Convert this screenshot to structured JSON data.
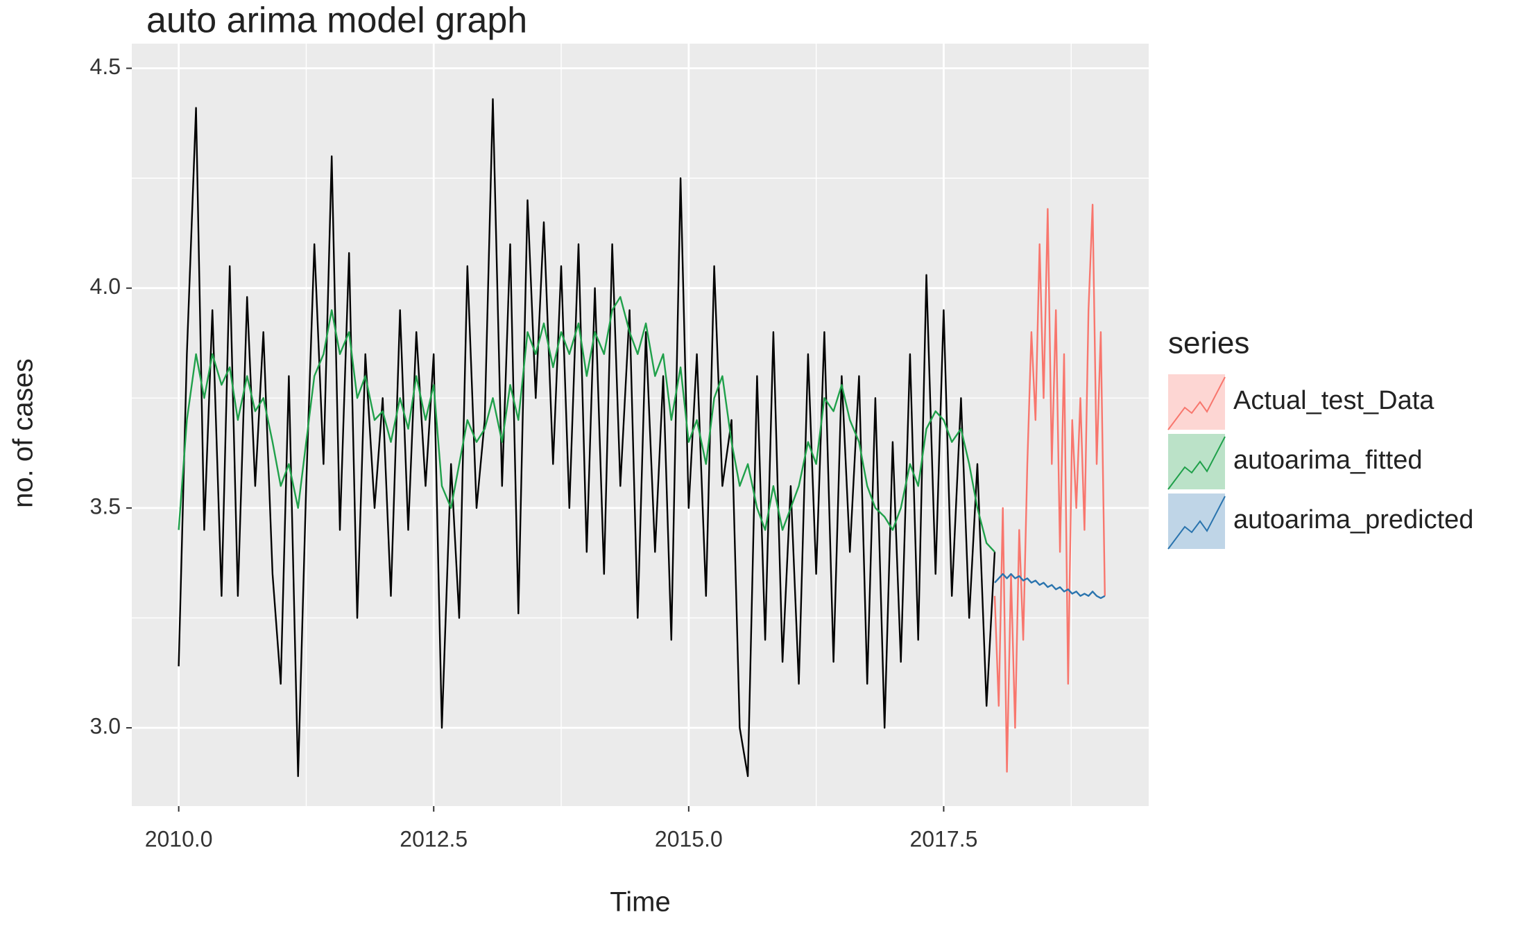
{
  "chart_data": {
    "type": "line",
    "title": "auto arima model graph",
    "x_label": "Time",
    "y_label": "no. of cases",
    "legend_title": "series",
    "xlim": [
      2009.54,
      2019.51
    ],
    "ylim": [
      2.822,
      4.556
    ],
    "xticks": [
      {
        "value": 2010,
        "label": "2010.0"
      },
      2012.5,
      {
        "value": 2015,
        "label": "2015.0"
      },
      2017.5
    ],
    "yticks": [
      {
        "value": 3,
        "label": "3.0"
      },
      3.5,
      {
        "value": 4,
        "label": "4.0"
      },
      4.5
    ],
    "grid": true,
    "legend": "right",
    "series": [
      {
        "color": "#000000",
        "x": [
          2010.0,
          2010.08,
          2010.17,
          2010.25,
          2010.33,
          2010.42,
          2010.5,
          2010.58,
          2010.67,
          2010.75,
          2010.83,
          2010.92,
          2011.0,
          2011.08,
          2011.17,
          2011.25,
          2011.33,
          2011.42,
          2011.5,
          2011.58,
          2011.67,
          2011.75,
          2011.83,
          2011.92,
          2012.0,
          2012.08,
          2012.17,
          2012.25,
          2012.33,
          2012.42,
          2012.5,
          2012.58,
          2012.67,
          2012.75,
          2012.83,
          2012.92,
          2013.0,
          2013.08,
          2013.17,
          2013.25,
          2013.33,
          2013.42,
          2013.5,
          2013.58,
          2013.67,
          2013.75,
          2013.83,
          2013.92,
          2014.0,
          2014.08,
          2014.17,
          2014.25,
          2014.33,
          2014.42,
          2014.5,
          2014.58,
          2014.67,
          2014.75,
          2014.83,
          2014.92,
          2015.0,
          2015.08,
          2015.17,
          2015.25,
          2015.33,
          2015.42,
          2015.5,
          2015.58,
          2015.67,
          2015.75,
          2015.83,
          2015.92,
          2016.0,
          2016.08,
          2016.17,
          2016.25,
          2016.33,
          2016.42,
          2016.5,
          2016.58,
          2016.67,
          2016.75,
          2016.83,
          2016.92,
          2017.0,
          2017.08,
          2017.17,
          2017.25,
          2017.33,
          2017.42,
          2017.5,
          2017.58,
          2017.67,
          2017.75,
          2017.83,
          2017.92,
          2018.0
        ],
        "values": [
          3.14,
          3.85,
          4.41,
          3.45,
          3.95,
          3.3,
          4.05,
          3.3,
          3.98,
          3.55,
          3.9,
          3.35,
          3.1,
          3.8,
          2.89,
          3.55,
          4.1,
          3.6,
          4.3,
          3.45,
          4.08,
          3.25,
          3.85,
          3.5,
          3.75,
          3.3,
          3.95,
          3.45,
          3.9,
          3.55,
          3.85,
          3.0,
          3.6,
          3.25,
          4.05,
          3.5,
          3.7,
          4.43,
          3.55,
          4.1,
          3.26,
          4.2,
          3.75,
          4.15,
          3.6,
          4.05,
          3.5,
          4.1,
          3.4,
          4.0,
          3.35,
          4.1,
          3.55,
          3.95,
          3.25,
          3.9,
          3.4,
          3.8,
          3.2,
          4.25,
          3.5,
          3.85,
          3.3,
          4.05,
          3.55,
          3.7,
          3.0,
          2.89,
          3.8,
          3.2,
          3.9,
          3.15,
          3.55,
          3.1,
          3.85,
          3.35,
          3.9,
          3.15,
          3.8,
          3.4,
          3.8,
          3.1,
          3.75,
          3.0,
          3.65,
          3.15,
          3.85,
          3.2,
          4.03,
          3.35,
          3.95,
          3.3,
          3.75,
          3.25,
          3.6,
          3.05,
          3.4
        ]
      },
      {
        "name": "Actual_test_Data",
        "color": "#F8766D",
        "x": [
          2018.0,
          2018.04,
          2018.08,
          2018.12,
          2018.16,
          2018.2,
          2018.24,
          2018.28,
          2018.32,
          2018.36,
          2018.4,
          2018.44,
          2018.48,
          2018.52,
          2018.56,
          2018.6,
          2018.64,
          2018.68,
          2018.72,
          2018.76,
          2018.8,
          2018.84,
          2018.88,
          2018.92,
          2018.96,
          2019.0,
          2019.04,
          2019.08
        ],
        "values": [
          3.3,
          3.05,
          3.5,
          2.9,
          3.35,
          3.0,
          3.45,
          3.2,
          3.6,
          3.9,
          3.7,
          4.1,
          3.75,
          4.18,
          3.6,
          3.95,
          3.4,
          3.85,
          3.1,
          3.7,
          3.5,
          3.75,
          3.45,
          3.95,
          4.19,
          3.6,
          3.9,
          3.3
        ]
      },
      {
        "name": "autoarima_fitted",
        "color": "#1FA04A",
        "x": [
          2010.0,
          2010.08,
          2010.17,
          2010.25,
          2010.33,
          2010.42,
          2010.5,
          2010.58,
          2010.67,
          2010.75,
          2010.83,
          2010.92,
          2011.0,
          2011.08,
          2011.17,
          2011.25,
          2011.33,
          2011.42,
          2011.5,
          2011.58,
          2011.67,
          2011.75,
          2011.83,
          2011.92,
          2012.0,
          2012.08,
          2012.17,
          2012.25,
          2012.33,
          2012.42,
          2012.5,
          2012.58,
          2012.67,
          2012.75,
          2012.83,
          2012.92,
          2013.0,
          2013.08,
          2013.17,
          2013.25,
          2013.33,
          2013.42,
          2013.5,
          2013.58,
          2013.67,
          2013.75,
          2013.83,
          2013.92,
          2014.0,
          2014.08,
          2014.17,
          2014.25,
          2014.33,
          2014.42,
          2014.5,
          2014.58,
          2014.67,
          2014.75,
          2014.83,
          2014.92,
          2015.0,
          2015.08,
          2015.17,
          2015.25,
          2015.33,
          2015.42,
          2015.5,
          2015.58,
          2015.67,
          2015.75,
          2015.83,
          2015.92,
          2016.0,
          2016.08,
          2016.17,
          2016.25,
          2016.33,
          2016.42,
          2016.5,
          2016.58,
          2016.67,
          2016.75,
          2016.83,
          2016.92,
          2017.0,
          2017.08,
          2017.17,
          2017.25,
          2017.33,
          2017.42,
          2017.5,
          2017.58,
          2017.67,
          2017.75,
          2017.83,
          2017.92,
          2018.0
        ],
        "values": [
          3.45,
          3.7,
          3.85,
          3.75,
          3.85,
          3.78,
          3.82,
          3.7,
          3.8,
          3.72,
          3.75,
          3.65,
          3.55,
          3.6,
          3.5,
          3.65,
          3.8,
          3.85,
          3.95,
          3.85,
          3.9,
          3.75,
          3.8,
          3.7,
          3.72,
          3.65,
          3.75,
          3.68,
          3.8,
          3.7,
          3.78,
          3.55,
          3.5,
          3.6,
          3.7,
          3.65,
          3.68,
          3.75,
          3.65,
          3.78,
          3.7,
          3.9,
          3.85,
          3.92,
          3.82,
          3.9,
          3.85,
          3.92,
          3.8,
          3.9,
          3.85,
          3.95,
          3.98,
          3.9,
          3.85,
          3.92,
          3.8,
          3.85,
          3.7,
          3.82,
          3.65,
          3.7,
          3.6,
          3.75,
          3.8,
          3.65,
          3.55,
          3.6,
          3.5,
          3.45,
          3.55,
          3.45,
          3.5,
          3.55,
          3.65,
          3.6,
          3.75,
          3.72,
          3.78,
          3.7,
          3.65,
          3.55,
          3.5,
          3.48,
          3.45,
          3.5,
          3.6,
          3.55,
          3.68,
          3.72,
          3.7,
          3.65,
          3.68,
          3.6,
          3.5,
          3.42,
          3.4
        ]
      },
      {
        "name": "autoarima_predicted",
        "color": "#2A74AE",
        "x": [
          2018.0,
          2018.04,
          2018.08,
          2018.12,
          2018.16,
          2018.2,
          2018.24,
          2018.28,
          2018.32,
          2018.36,
          2018.4,
          2018.44,
          2018.48,
          2018.52,
          2018.56,
          2018.6,
          2018.64,
          2018.68,
          2018.72,
          2018.76,
          2018.8,
          2018.84,
          2018.88,
          2018.92,
          2018.96,
          2019.0,
          2019.04,
          2019.08
        ],
        "values": [
          3.33,
          3.34,
          3.35,
          3.34,
          3.35,
          3.34,
          3.345,
          3.335,
          3.34,
          3.33,
          3.335,
          3.325,
          3.33,
          3.32,
          3.325,
          3.315,
          3.32,
          3.31,
          3.315,
          3.305,
          3.31,
          3.3,
          3.305,
          3.3,
          3.31,
          3.3,
          3.295,
          3.3
        ]
      }
    ]
  }
}
